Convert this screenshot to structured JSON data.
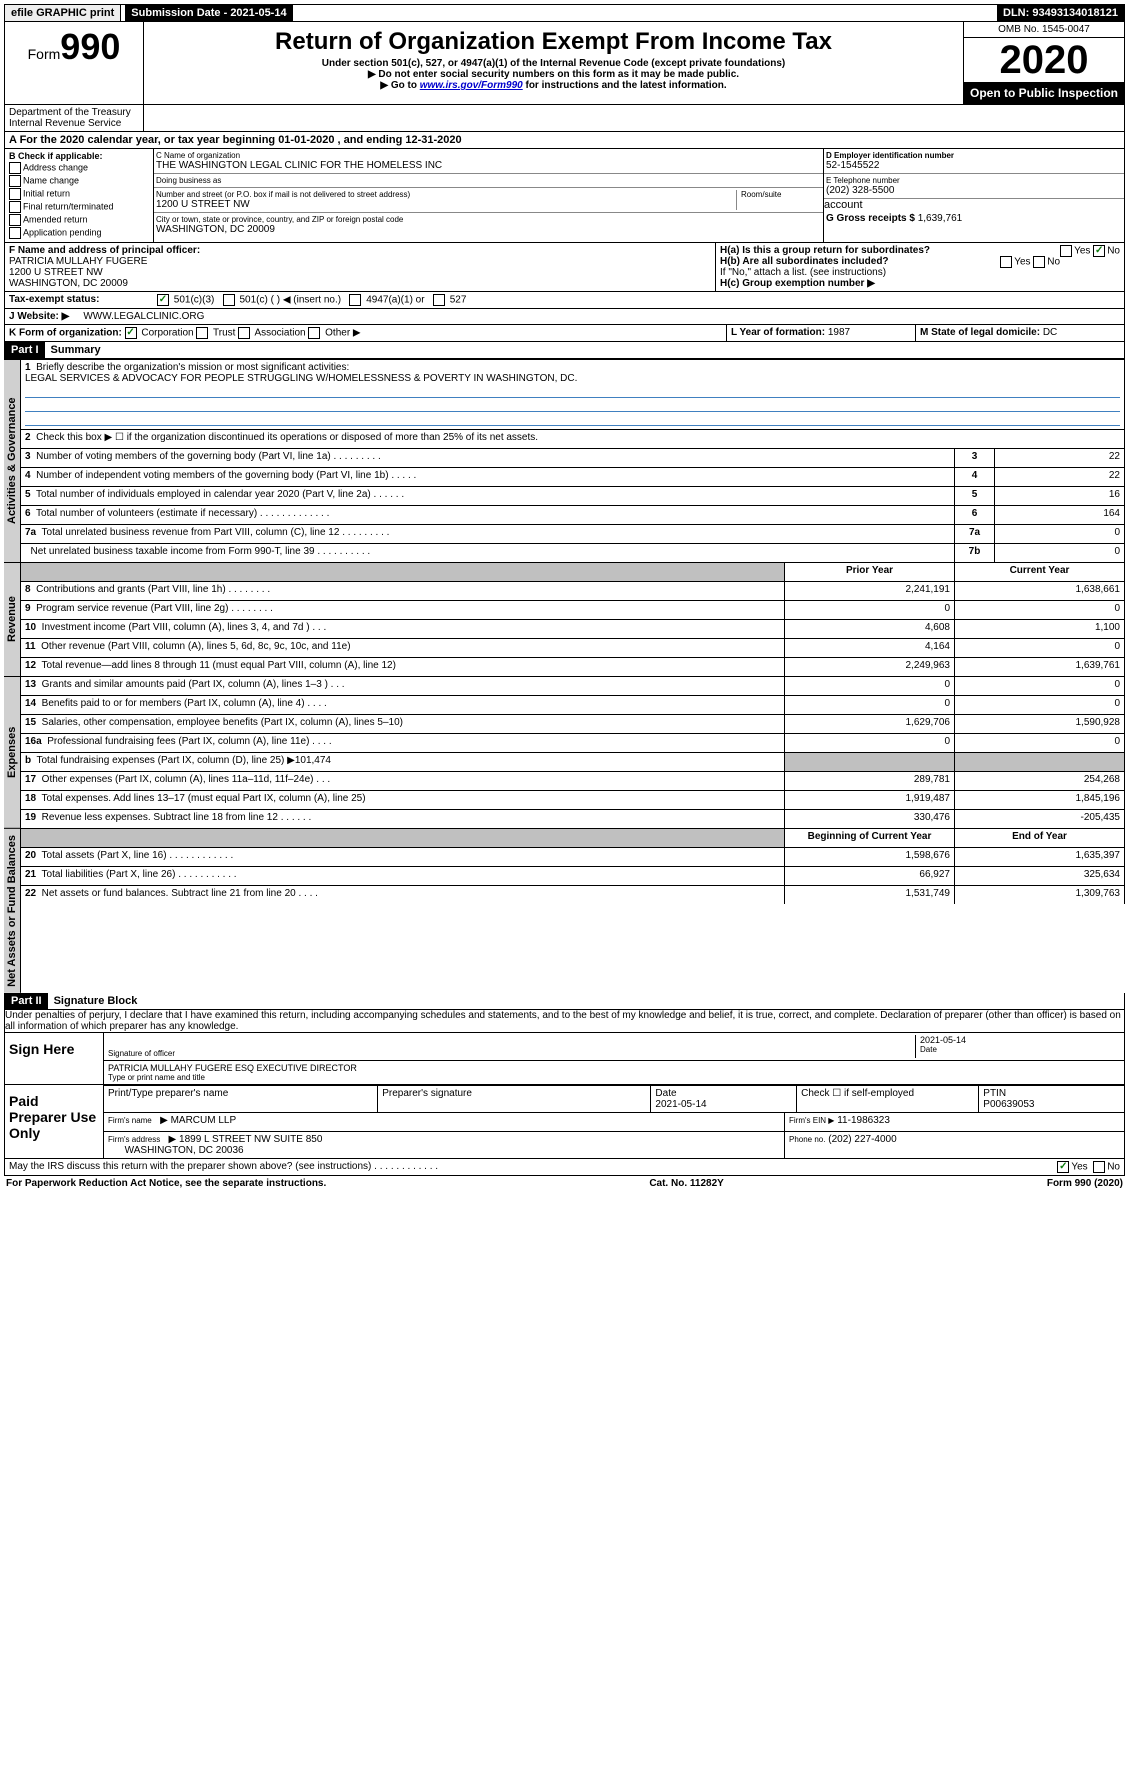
{
  "topbar": {
    "efile": "efile GRAPHIC print",
    "submission_label": "Submission Date - 2021-05-14",
    "dln": "DLN: 93493134018121"
  },
  "header": {
    "form_prefix": "Form",
    "form_number": "990",
    "title": "Return of Organization Exempt From Income Tax",
    "subtitle": "Under section 501(c), 527, or 4947(a)(1) of the Internal Revenue Code (except private foundations)",
    "note1": "▶ Do not enter social security numbers on this form as it may be made public.",
    "note2_prefix": "▶ Go to ",
    "note2_link": "www.irs.gov/Form990",
    "note2_suffix": " for instructions and the latest information.",
    "dept": "Department of the Treasury\nInternal Revenue Service",
    "omb": "OMB No. 1545-0047",
    "year": "2020",
    "inspection": "Open to Public Inspection"
  },
  "A": {
    "text": "A For the 2020 calendar year, or tax year beginning 01-01-2020   , and ending 12-31-2020"
  },
  "B": {
    "label": "B Check if applicable:",
    "opts": [
      "Address change",
      "Name change",
      "Initial return",
      "Final return/terminated",
      "Amended return",
      "Application pending"
    ]
  },
  "C": {
    "name_label": "C Name of organization",
    "name": "THE WASHINGTON LEGAL CLINIC FOR THE HOMELESS INC",
    "dba_label": "Doing business as",
    "addr_label": "Number and street (or P.O. box if mail is not delivered to street address)",
    "room_label": "Room/suite",
    "addr": "1200 U STREET NW",
    "city_label": "City or town, state or province, country, and ZIP or foreign postal code",
    "city": "WASHINGTON, DC  20009"
  },
  "D": {
    "label": "D Employer identification number",
    "val": "52-1545522"
  },
  "E": {
    "label": "E Telephone number",
    "val": "(202) 328-5500"
  },
  "G": {
    "label": "G Gross receipts $",
    "val": "1,639,761"
  },
  "F": {
    "label": "F  Name and address of principal officer:",
    "name": "PATRICIA MULLAHY FUGERE",
    "addr": "1200 U STREET NW",
    "city": "WASHINGTON, DC  20009"
  },
  "H": {
    "a": "H(a)  Is this a group return for subordinates?",
    "b": "H(b)  Are all subordinates included?",
    "b_note": "If \"No,\" attach a list. (see instructions)",
    "c": "H(c)  Group exemption number ▶",
    "yes": "Yes",
    "no": "No"
  },
  "I": {
    "label": "Tax-exempt status:",
    "opts": [
      "501(c)(3)",
      "501(c) (   ) ◀ (insert no.)",
      "4947(a)(1) or",
      "527"
    ]
  },
  "J": {
    "label": "J    Website: ▶",
    "val": "WWW.LEGALCLINIC.ORG"
  },
  "K": {
    "label": "K Form of organization:",
    "opts": [
      "Corporation",
      "Trust",
      "Association",
      "Other ▶"
    ]
  },
  "L": {
    "label": "L Year of formation:",
    "val": "1987"
  },
  "M": {
    "label": "M State of legal domicile:",
    "val": "DC"
  },
  "parts": {
    "p1": "Part I",
    "p1t": "Summary",
    "p2": "Part II",
    "p2t": "Signature Block"
  },
  "summary": {
    "q1": "Briefly describe the organization's mission or most significant activities:",
    "q1a": "LEGAL SERVICES & ADVOCACY FOR PEOPLE STRUGGLING W/HOMELESSNESS & POVERTY IN WASHINGTON, DC.",
    "q2": "Check this box ▶ ☐  if the organization discontinued its operations or disposed of more than 25% of its net assets.",
    "rows_gov": [
      {
        "n": "3",
        "t": "Number of voting members of the governing body (Part VI, line 1a)   .    .    .    .    .    .    .    .    .",
        "b": "3",
        "v": "22"
      },
      {
        "n": "4",
        "t": "Number of independent voting members of the governing body (Part VI, line 1b)   .    .    .    .    .",
        "b": "4",
        "v": "22"
      },
      {
        "n": "5",
        "t": "Total number of individuals employed in calendar year 2020 (Part V, line 2a)   .    .    .    .    .    .",
        "b": "5",
        "v": "16"
      },
      {
        "n": "6",
        "t": "Total number of volunteers (estimate if necessary)   .    .    .    .    .    .    .    .    .    .    .    .    .",
        "b": "6",
        "v": "164"
      },
      {
        "n": "7a",
        "t": "Total unrelated business revenue from Part VIII, column (C), line 12   .    .    .    .    .    .    .    .    .",
        "b": "7a",
        "v": "0"
      },
      {
        "n": "",
        "t": "Net unrelated business taxable income from Form 990-T, line 39   .    .    .    .    .    .    .    .    .    .",
        "b": "7b",
        "v": "0"
      }
    ],
    "hdr_prior": "Prior Year",
    "hdr_current": "Current Year",
    "rows_rev": [
      {
        "n": "8",
        "t": "Contributions and grants (Part VIII, line 1h)   .    .    .    .    .    .    .    .",
        "p": "2,241,191",
        "c": "1,638,661"
      },
      {
        "n": "9",
        "t": "Program service revenue (Part VIII, line 2g)   .    .    .    .    .    .    .    .",
        "p": "0",
        "c": "0"
      },
      {
        "n": "10",
        "t": "Investment income (Part VIII, column (A), lines 3, 4, and 7d )   .    .    .",
        "p": "4,608",
        "c": "1,100"
      },
      {
        "n": "11",
        "t": "Other revenue (Part VIII, column (A), lines 5, 6d, 8c, 9c, 10c, and 11e)",
        "p": "4,164",
        "c": "0"
      },
      {
        "n": "12",
        "t": "Total revenue—add lines 8 through 11 (must equal Part VIII, column (A), line 12)",
        "p": "2,249,963",
        "c": "1,639,761"
      }
    ],
    "rows_exp": [
      {
        "n": "13",
        "t": "Grants and similar amounts paid (Part IX, column (A), lines 1–3 )   .    .    .",
        "p": "0",
        "c": "0"
      },
      {
        "n": "14",
        "t": "Benefits paid to or for members (Part IX, column (A), line 4)   .    .    .    .",
        "p": "0",
        "c": "0"
      },
      {
        "n": "15",
        "t": "Salaries, other compensation, employee benefits (Part IX, column (A), lines 5–10)",
        "p": "1,629,706",
        "c": "1,590,928"
      },
      {
        "n": "16a",
        "t": "Professional fundraising fees (Part IX, column (A), line 11e)   .    .    .    .",
        "p": "0",
        "c": "0"
      },
      {
        "n": "b",
        "t": "Total fundraising expenses (Part IX, column (D), line 25) ▶101,474",
        "p": "",
        "c": "",
        "shade": true
      },
      {
        "n": "17",
        "t": "Other expenses (Part IX, column (A), lines 11a–11d, 11f–24e)   .    .    .",
        "p": "289,781",
        "c": "254,268"
      },
      {
        "n": "18",
        "t": "Total expenses. Add lines 13–17 (must equal Part IX, column (A), line 25)",
        "p": "1,919,487",
        "c": "1,845,196"
      },
      {
        "n": "19",
        "t": "Revenue less expenses. Subtract line 18 from line 12   .    .    .    .    .    .",
        "p": "330,476",
        "c": "-205,435"
      }
    ],
    "hdr_begin": "Beginning of Current Year",
    "hdr_end": "End of Year",
    "rows_net": [
      {
        "n": "20",
        "t": "Total assets (Part X, line 16)   .    .    .    .    .    .    .    .    .    .    .    .",
        "p": "1,598,676",
        "c": "1,635,397"
      },
      {
        "n": "21",
        "t": "Total liabilities (Part X, line 26)   .    .    .    .    .    .    .    .    .    .    .",
        "p": "66,927",
        "c": "325,634"
      },
      {
        "n": "22",
        "t": "Net assets or fund balances. Subtract line 21 from line 20   .    .    .    .",
        "p": "1,531,749",
        "c": "1,309,763"
      }
    ]
  },
  "vtabs": {
    "gov": "Activities & Governance",
    "rev": "Revenue",
    "exp": "Expenses",
    "net": "Net Assets or Fund Balances"
  },
  "perjury": "Under penalties of perjury, I declare that I have examined this return, including accompanying schedules and statements, and to the best of my knowledge and belief, it is true, correct, and complete. Declaration of preparer (other than officer) is based on all information of which preparer has any knowledge.",
  "sign": {
    "label": "Sign Here",
    "sig_of": "Signature of officer",
    "date": "2021-05-14",
    "date_label": "Date",
    "name": "PATRICIA MULLAHY FUGERE ESQ  EXECUTIVE DIRECTOR",
    "name_label": "Type or print name and title"
  },
  "paid": {
    "label": "Paid Preparer Use Only",
    "h1": "Print/Type preparer's name",
    "h2": "Preparer's signature",
    "h3": "Date",
    "h4": "Check ☐ if self-employed",
    "h5": "PTIN",
    "date": "2021-05-14",
    "ptin": "P00639053",
    "firm_name_label": "Firm's name",
    "firm_name": "▶ MARCUM LLP",
    "firm_ein_label": "Firm's EIN ▶",
    "firm_ein": "11-1986323",
    "firm_addr_label": "Firm's address",
    "firm_addr": "▶ 1899 L STREET NW SUITE 850",
    "firm_city": "WASHINGTON, DC  20036",
    "phone_label": "Phone no.",
    "phone": "(202) 227-4000"
  },
  "discuss": {
    "q": "May the IRS discuss this return with the preparer shown above? (see instructions)   .    .    .    .    .    .    .    .    .    .    .    .",
    "yes": "Yes",
    "no": "No"
  },
  "foot": {
    "l": "For Paperwork Reduction Act Notice, see the separate instructions.",
    "c": "Cat. No. 11282Y",
    "r": "Form 990 (2020)"
  }
}
